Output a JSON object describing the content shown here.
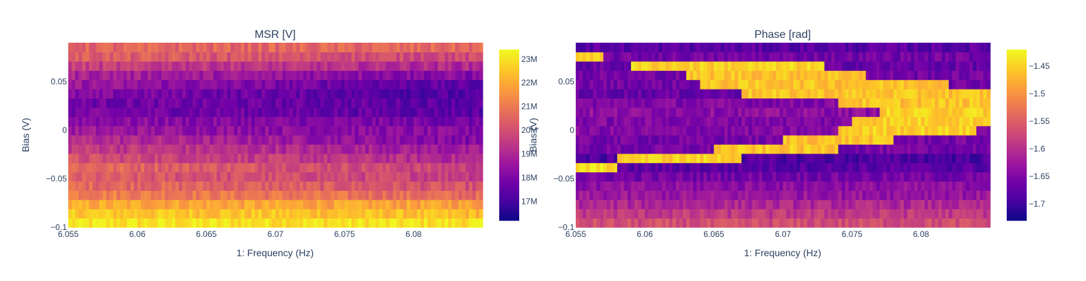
{
  "chart_data": [
    {
      "type": "heatmap",
      "title": "MSR [V]",
      "xlabel": "1: Frequency (Hz)",
      "ylabel": "Bias (V)",
      "xlim": [
        6.055,
        6.085
      ],
      "ylim": [
        -0.1,
        0.09
      ],
      "x_ticks": [
        "6.055",
        "6.06",
        "6.065",
        "6.07",
        "6.075",
        "6.08"
      ],
      "x_tick_values": [
        6.055,
        6.06,
        6.065,
        6.07,
        6.075,
        6.08
      ],
      "y_ticks": [
        "0.05",
        "0",
        "−0.05",
        "−0.1"
      ],
      "y_tick_values": [
        0.05,
        0,
        -0.05,
        -0.1
      ],
      "colorscale": "plasma",
      "colorbar": {
        "range": [
          16.2,
          23.4
        ],
        "ticks": [
          "23M",
          "22M",
          "21M",
          "20M",
          "19M",
          "18M",
          "17M"
        ],
        "tick_values": [
          23,
          22,
          21,
          20,
          19,
          18,
          17
        ]
      },
      "rows": {
        "bias": [
          -0.1,
          -0.09,
          -0.08,
          -0.07,
          -0.06,
          -0.05,
          -0.04,
          -0.03,
          -0.02,
          -0.01,
          0.0,
          0.01,
          0.02,
          0.03,
          0.04,
          0.05,
          0.06,
          0.07,
          0.08,
          0.09
        ],
        "start_value": [
          23.0,
          22.6,
          22.0,
          21.2,
          20.7,
          20.3,
          20.7,
          20.0,
          19.6,
          19.2,
          18.6,
          18.3,
          17.9,
          17.8,
          18.1,
          18.6,
          18.9,
          19.6,
          20.4,
          20.5
        ],
        "end_value": [
          23.0,
          22.3,
          21.8,
          20.6,
          20.0,
          19.6,
          19.6,
          19.0,
          18.6,
          18.1,
          18.1,
          17.8,
          17.4,
          17.4,
          17.1,
          17.3,
          18.1,
          19.0,
          19.8,
          20.6
        ]
      }
    },
    {
      "type": "heatmap",
      "title": "Phase [rad]",
      "xlabel": "1: Frequency (Hz)",
      "ylabel": "Bias (V)",
      "xlim": [
        6.055,
        6.085
      ],
      "ylim": [
        -0.1,
        0.09
      ],
      "x_ticks": [
        "6.055",
        "6.06",
        "6.065",
        "6.07",
        "6.075",
        "6.08"
      ],
      "x_tick_values": [
        6.055,
        6.06,
        6.065,
        6.07,
        6.075,
        6.08
      ],
      "y_ticks": [
        "0.05",
        "0",
        "−0.05",
        "−0.1"
      ],
      "y_tick_values": [
        0.05,
        0,
        -0.05,
        -0.1
      ],
      "colorscale": "plasma",
      "colorbar": {
        "range": [
          -1.73,
          -1.42
        ],
        "ticks": [
          "−1.45",
          "−1.5",
          "−1.55",
          "−1.6",
          "−1.65",
          "−1.7"
        ],
        "tick_values": [
          -1.45,
          -1.5,
          -1.55,
          -1.6,
          -1.65,
          -1.7
        ]
      },
      "rows": {
        "bias": [
          -0.1,
          -0.09,
          -0.08,
          -0.07,
          -0.06,
          -0.05,
          -0.04,
          -0.03,
          -0.02,
          -0.01,
          0.0,
          0.01,
          0.02,
          0.03,
          0.04,
          0.05,
          0.06,
          0.07,
          0.08,
          0.09
        ],
        "baseline": [
          -1.57,
          -1.59,
          -1.61,
          -1.63,
          -1.64,
          -1.66,
          -1.68,
          -1.69,
          -1.66,
          -1.66,
          -1.65,
          -1.65,
          -1.64,
          -1.65,
          -1.67,
          -1.66,
          -1.66,
          -1.67,
          -1.66,
          -1.68
        ],
        "band_value": [
          null,
          null,
          null,
          null,
          null,
          null,
          -1.44,
          -1.45,
          -1.46,
          -1.46,
          -1.45,
          -1.45,
          -1.45,
          -1.46,
          -1.46,
          -1.46,
          -1.46,
          -1.45,
          -1.46,
          null
        ],
        "band_x_start": [
          null,
          null,
          null,
          null,
          null,
          null,
          6.055,
          6.058,
          6.065,
          6.07,
          6.074,
          6.075,
          6.077,
          6.074,
          6.067,
          6.064,
          6.063,
          6.059,
          6.055,
          null
        ],
        "band_x_end": [
          null,
          null,
          null,
          null,
          null,
          null,
          6.058,
          6.067,
          6.074,
          6.078,
          6.084,
          6.085,
          6.085,
          6.085,
          6.085,
          6.082,
          6.076,
          6.073,
          6.057,
          null
        ]
      }
    }
  ]
}
